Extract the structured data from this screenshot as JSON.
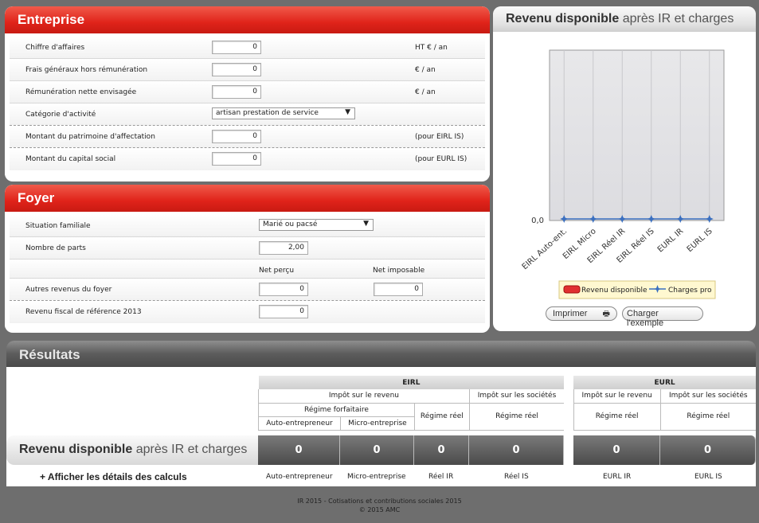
{
  "entreprise": {
    "title": "Entreprise",
    "rows": [
      {
        "label": "Chiffre d'affaires",
        "value": "0",
        "unit": "HT € / an"
      },
      {
        "label": "Frais généraux hors rémunération",
        "value": "0",
        "unit": "€ / an"
      },
      {
        "label": "Rémunération nette envisagée",
        "value": "0",
        "unit": "€ / an"
      },
      {
        "label": "Catégorie d'activité",
        "select": "artisan prestation de service"
      },
      {
        "label": "Montant du patrimoine d'affectation",
        "value": "0",
        "unit": "(pour EIRL IS)"
      },
      {
        "label": "Montant du capital social",
        "value": "0",
        "unit": "(pour EURL IS)"
      }
    ]
  },
  "foyer": {
    "title": "Foyer",
    "situation_label": "Situation familiale",
    "situation_value": "Marié ou pacsé",
    "parts_label": "Nombre de parts",
    "parts_value": "2,00",
    "col_net_percu": "Net perçu",
    "col_net_imposable": "Net imposable",
    "autres_label": "Autres revenus du foyer",
    "autres_percu": "0",
    "autres_imposable": "0",
    "rfr_label": "Revenu fiscal de référence 2013",
    "rfr_value": "0"
  },
  "chart_panel": {
    "title_bold": "Revenu disponible",
    "title_rest": " après IR et charges",
    "print_button": "Imprimer",
    "load_button": "Charger l'exemple"
  },
  "chart_data": {
    "type": "bar",
    "categories": [
      "EIRL Auto-ent.",
      "EIRL Micro",
      "EIRL Réel IR",
      "EIRL Réel IS",
      "EURL IR",
      "EURL IS"
    ],
    "series": [
      {
        "name": "Revenu disponible",
        "type": "bar",
        "values": [
          0,
          0,
          0,
          0,
          0,
          0
        ],
        "color": "#e03030"
      },
      {
        "name": "Charges pro",
        "type": "line",
        "values": [
          0,
          0,
          0,
          0,
          0,
          0
        ],
        "color": "#3a6fc0"
      }
    ],
    "y_tick_label": "0,0",
    "legend": "bottom",
    "grid": true
  },
  "results": {
    "title": "Résultats",
    "eirl": "EIRL",
    "eurl": "EURL",
    "impot_revenu": "Impôt sur le revenu",
    "impot_societes": "Impôt sur les sociétés",
    "regime_forfaitaire": "Régime forfaitaire",
    "regime_reel": "Régime réel",
    "auto": "Auto-entrepreneur",
    "micro": "Micro-entreprise",
    "rd_bold": "Revenu disponible",
    "rd_rest": " après IR et charges",
    "values": [
      "0",
      "0",
      "0",
      "0",
      "0",
      "0"
    ],
    "details_link": "+ Afficher les détails des calculs",
    "detail_labels": [
      "Auto-entrepreneur",
      "Micro-entreprise",
      "Réel IR",
      "Réel IS",
      "EURL IR",
      "EURL IS"
    ]
  },
  "footer": {
    "line1": "IR 2015 - Cotisations et contributions sociales 2015",
    "line2": "© 2015 AMC"
  }
}
